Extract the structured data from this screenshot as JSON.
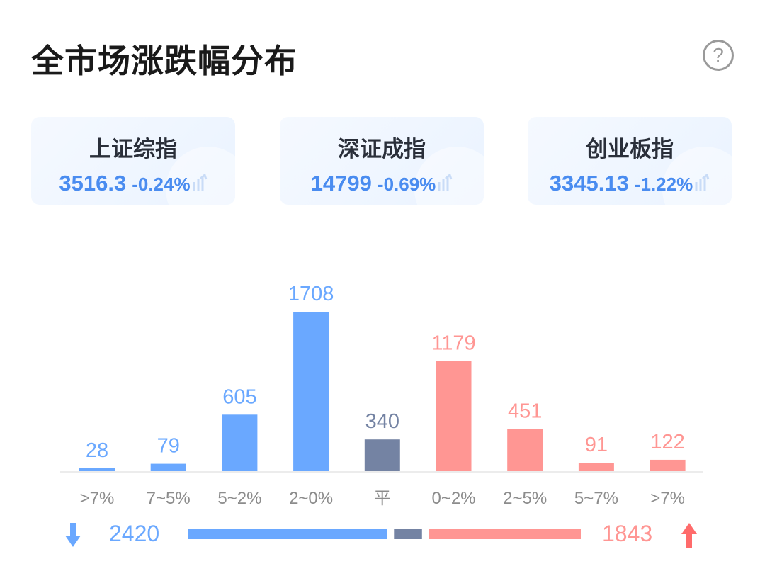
{
  "header": {
    "title": "全市场涨跌幅分布",
    "help_label": "?"
  },
  "indices": [
    {
      "name": "上证综指",
      "value": "3516.3",
      "change": "-0.24%"
    },
    {
      "name": "深证成指",
      "value": "14799",
      "change": "-0.69%"
    },
    {
      "name": "创业板指",
      "value": "3345.13",
      "change": "-1.22%"
    }
  ],
  "colors": {
    "down": "#6aa8ff",
    "flat": "#7483a3",
    "up": "#ff9693",
    "card_text": "#4a8cf0"
  },
  "chart_data": {
    "type": "bar",
    "categories": [
      ">7%",
      "7~5%",
      "5~2%",
      "2~0%",
      "平",
      "0~2%",
      "2~5%",
      "5~7%",
      ">7%"
    ],
    "values": [
      28,
      79,
      605,
      1708,
      340,
      1179,
      451,
      91,
      122
    ],
    "groups": [
      "down",
      "down",
      "down",
      "down",
      "flat",
      "up",
      "up",
      "up",
      "up"
    ],
    "title": "",
    "xlabel": "",
    "ylabel": "",
    "ylim": [
      0,
      1708
    ],
    "grid": false
  },
  "summary": {
    "down_total": "2420",
    "up_total": "1843",
    "down_count": 2420,
    "flat_count": 340,
    "up_count": 1843
  }
}
